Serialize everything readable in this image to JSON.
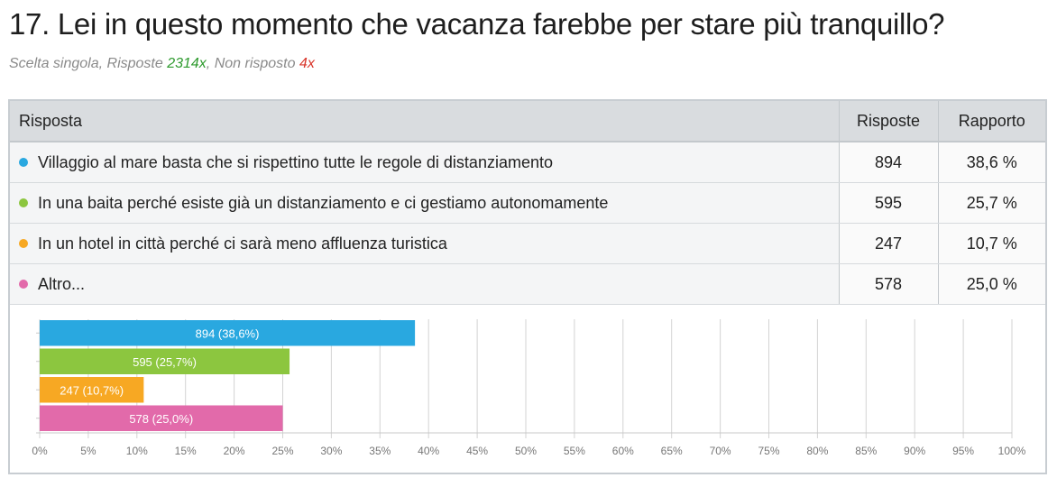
{
  "header": {
    "title": "17. Lei in questo momento che vacanza farebbe per stare più tranquillo?",
    "subtitle_prefix": "Scelta singola, Risposte ",
    "responses_count": "2314x",
    "subtitle_mid": ", Non risposto ",
    "unanswered_count": "4x"
  },
  "table": {
    "columns": [
      "Risposta",
      "Risposte",
      "Rapporto"
    ],
    "rows": [
      {
        "answer": "Villaggio al mare basta che si rispettino tutte le regole di distanziamento",
        "count": "894",
        "ratio": "38,6 %",
        "color": "#29a8e0"
      },
      {
        "answer": "In una baita perché esiste già un distanziamento e ci gestiamo autonomamente",
        "count": "595",
        "ratio": "25,7 %",
        "color": "#8cc63f"
      },
      {
        "answer": "In un hotel in città perché ci sarà meno affluenza turistica",
        "count": "247",
        "ratio": "10,7 %",
        "color": "#f7a823"
      },
      {
        "answer": "Altro...",
        "count": "578",
        "ratio": "25,0 %",
        "color": "#e26aaa"
      }
    ]
  },
  "chart_data": {
    "type": "bar",
    "orientation": "horizontal",
    "categories": [
      "Villaggio al mare basta che si rispettino tutte le regole di distanziamento",
      "In una baita perché esiste già un distanziamento e ci gestiamo autonomamente",
      "In un hotel in città perché ci sarà meno affluenza turistica",
      "Altro..."
    ],
    "values": [
      38.6,
      25.7,
      10.7,
      25.0
    ],
    "counts": [
      894,
      595,
      247,
      578
    ],
    "bar_labels": [
      "894 (38,6%)",
      "595 (25,7%)",
      "247 (10,7%)",
      "578 (25,0%)"
    ],
    "colors": [
      "#29a8e0",
      "#8cc63f",
      "#f7a823",
      "#e26aaa"
    ],
    "xlim": [
      0,
      100
    ],
    "xticks": [
      0,
      5,
      10,
      15,
      20,
      25,
      30,
      35,
      40,
      45,
      50,
      55,
      60,
      65,
      70,
      75,
      80,
      85,
      90,
      95,
      100
    ],
    "xtick_labels": [
      "0%",
      "5%",
      "10%",
      "15%",
      "20%",
      "25%",
      "30%",
      "35%",
      "40%",
      "45%",
      "50%",
      "55%",
      "60%",
      "65%",
      "70%",
      "75%",
      "80%",
      "85%",
      "90%",
      "95%",
      "100%"
    ],
    "grid": true
  }
}
